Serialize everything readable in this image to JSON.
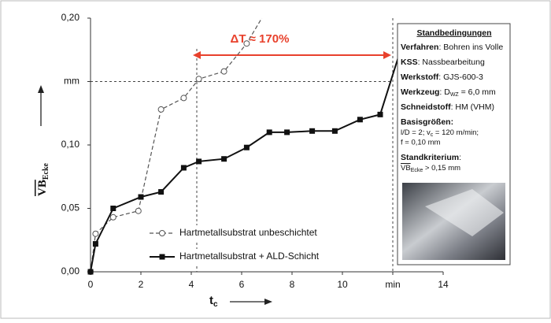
{
  "chart_data": {
    "type": "line",
    "xlabel": "t",
    "xlabel_sub": "c",
    "ylabel": "VB",
    "ylabel_sub": "Ecke",
    "xlim": [
      0,
      14
    ],
    "ylim": [
      0,
      0.2
    ],
    "xticks": [
      0,
      2,
      4,
      6,
      8,
      10,
      {
        "value": 12,
        "label": "min"
      },
      14
    ],
    "yticks": [
      {
        "value": 0,
        "label": "0,00"
      },
      {
        "value": 0.05,
        "label": "0,05"
      },
      {
        "value": 0.1,
        "label": "0,10"
      },
      {
        "value": 0.15,
        "label": "mm"
      },
      {
        "value": 0.2,
        "label": "0,20"
      }
    ],
    "annotation": "ΔT ≈ 170%",
    "series": [
      {
        "name": "Hartmetallsubstrat unbeschichtet",
        "color": "#555555",
        "x": [
          0,
          0.2,
          0.9,
          1.9,
          2.8,
          3.7,
          4.3,
          5.3,
          6.2,
          6.8
        ],
        "values": [
          0,
          0.03,
          0.043,
          0.048,
          0.128,
          0.137,
          0.152,
          0.158,
          0.18,
          0.2
        ]
      },
      {
        "name": "Hartmetallsubstrat + ALD-Schicht",
        "color": "#111111",
        "x": [
          0,
          0.2,
          0.9,
          2,
          2.8,
          3.7,
          4.3,
          5.3,
          6.2,
          7.1,
          7.8,
          8.8,
          9.7,
          10.7,
          11.5,
          12.2
        ],
        "values": [
          0,
          0.022,
          0.05,
          0.059,
          0.063,
          0.082,
          0.087,
          0.089,
          0.098,
          0.11,
          0.11,
          0.111,
          0.111,
          0.12,
          0.124,
          0.168
        ]
      }
    ]
  },
  "info": {
    "title": "Standbedingungen",
    "lines": [
      [
        "Verfahren",
        ": Bohren ins Volle"
      ],
      [
        "KSS",
        ": Nassbearbeitung"
      ],
      [
        "Werkstoff",
        ": GJS-600-3"
      ],
      [
        "Werkzeug",
        ": D",
        "WZ",
        " = 6,0 mm"
      ],
      [
        "Schneidstoff",
        ": HM  (VHM)"
      ],
      [
        "Basisgrößen:"
      ],
      [
        "l/D = 2; v",
        "c",
        " = 120 m/min;"
      ],
      [
        "f = 0,10 mm"
      ],
      [
        "Standkriterium",
        ":"
      ],
      [
        "VB",
        "Ecke",
        " > 0,15 mm"
      ]
    ]
  }
}
